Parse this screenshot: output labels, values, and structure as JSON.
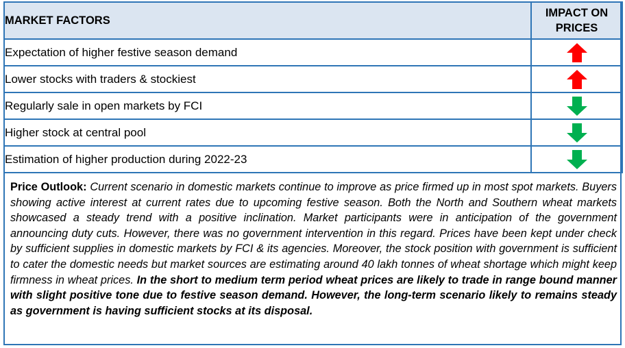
{
  "table": {
    "header_factor": "MARKET FACTORS",
    "header_impact": "IMPACT ON PRICES",
    "rows": [
      {
        "factor": "Expectation of higher festive season demand",
        "impact": "up",
        "icon": "arrow-up-icon",
        "color": "#ff0000"
      },
      {
        "factor": "Lower stocks with traders & stockiest",
        "impact": "up",
        "icon": "arrow-up-icon",
        "color": "#ff0000"
      },
      {
        "factor": "Regularly sale in open markets by FCI",
        "impact": "down",
        "icon": "arrow-down-icon",
        "color": "#00b050"
      },
      {
        "factor": "Higher stock at central pool",
        "impact": "down",
        "icon": "arrow-down-icon",
        "color": "#00b050"
      },
      {
        "factor": "Estimation of higher production during 2022-23",
        "impact": "down",
        "icon": "arrow-down-icon",
        "color": "#00b050"
      }
    ]
  },
  "outlook": {
    "label": "Price Outlook:",
    "body": "Current scenario in domestic markets continue to improve as price firmed up in most spot markets. Buyers showing active interest at current rates due to upcoming festive season. Both the North and Southern wheat markets showcased a steady trend with a positive inclination. Market participants were in anticipation of the government announcing duty cuts. However, there was no government intervention in this regard. Prices have been kept under check by sufficient supplies in domestic markets by FCI & its agencies. Moreover, the stock position with government is sufficient to cater the domestic needs but market sources are estimating around 40 lakh tonnes of wheat shortage which might keep firmness in wheat prices.",
    "conclusion": "In the short to medium term period wheat prices are likely to trade in range bound manner with slight positive tone due to festive season demand. However, the long-term scenario likely to remains steady as government is having sufficient stocks at its disposal."
  },
  "colors": {
    "border": "#2e75b6",
    "header_bg": "#dbe5f1",
    "up": "#ff0000",
    "down": "#00b050"
  }
}
